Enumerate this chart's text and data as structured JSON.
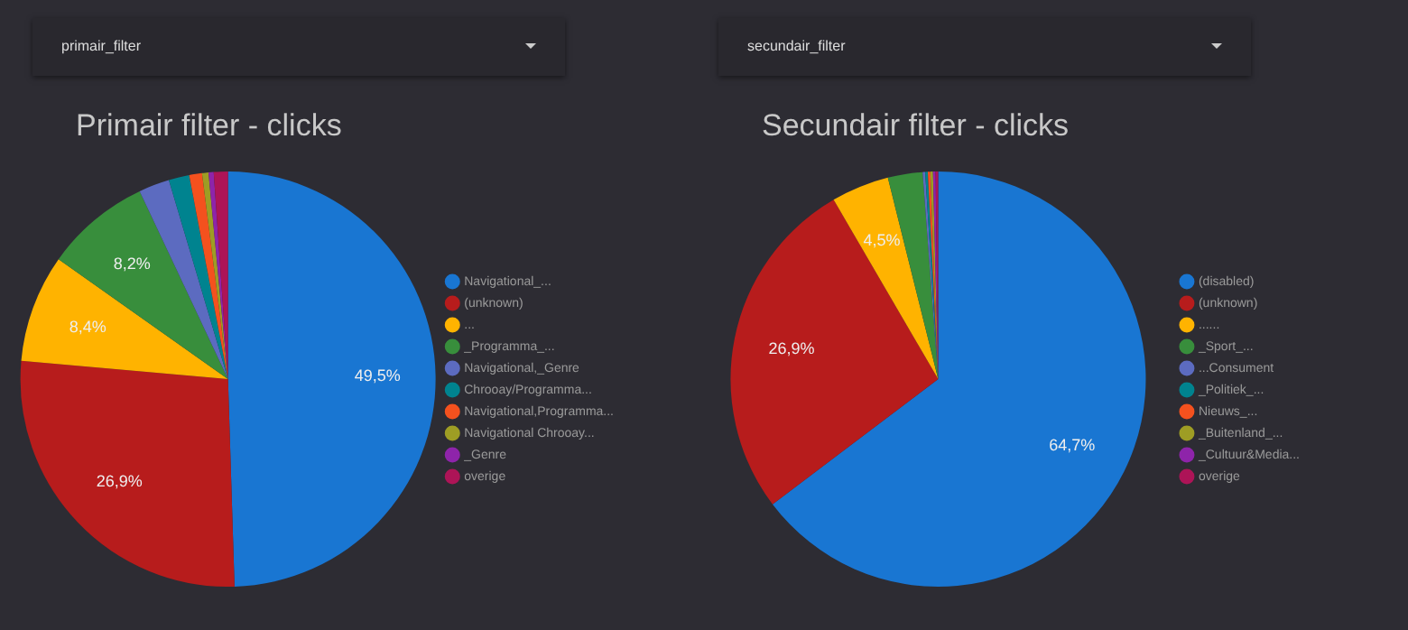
{
  "chart_data": [
    {
      "type": "pie",
      "title": "Primair filter - clicks",
      "annotations": [
        "primair_filter"
      ],
      "legend": "right",
      "categories": [
        "Navigational_...",
        "(unknown)",
        "...",
        "_Programma_...",
        "Navigational,_Genre",
        "Chrooay/Programma...",
        "Navigational,Programma...",
        "Navigational Chrooay...",
        "_Genre",
        "overige"
      ],
      "values": [
        49.5,
        26.9,
        8.4,
        8.2,
        2.4,
        1.6,
        1.0,
        0.5,
        0.4,
        1.1
      ],
      "colors": [
        "#1976d2",
        "#b71c1c",
        "#ffb300",
        "#388e3c",
        "#5c6bc0",
        "#00838f",
        "#f4511e",
        "#9e9d24",
        "#8e24aa",
        "#ad1457"
      ],
      "value_labels": [
        "49,5%",
        "26,9%",
        "8,4%",
        "8,2%",
        null,
        null,
        null,
        null,
        null,
        null
      ]
    },
    {
      "type": "pie",
      "title": "Secundair filter - clicks",
      "annotations": [
        "secundair_filter"
      ],
      "legend": "right",
      "categories": [
        "(disabled)",
        "(unknown)",
        "......",
        "_Sport_...",
        "...Consument",
        "_Politiek_...",
        "Nieuws_...",
        "_Buitenland_...",
        "_Cultuur&Media...",
        "overige"
      ],
      "values": [
        64.7,
        26.9,
        4.5,
        2.7,
        0.2,
        0.2,
        0.2,
        0.2,
        0.2,
        0.2
      ],
      "colors": [
        "#1976d2",
        "#b71c1c",
        "#ffb300",
        "#388e3c",
        "#5c6bc0",
        "#00838f",
        "#f4511e",
        "#9e9d24",
        "#8e24aa",
        "#ad1457"
      ],
      "value_labels": [
        "64,7%",
        "26,9%",
        "4,5%",
        null,
        null,
        null,
        null,
        null,
        null,
        null
      ]
    }
  ]
}
